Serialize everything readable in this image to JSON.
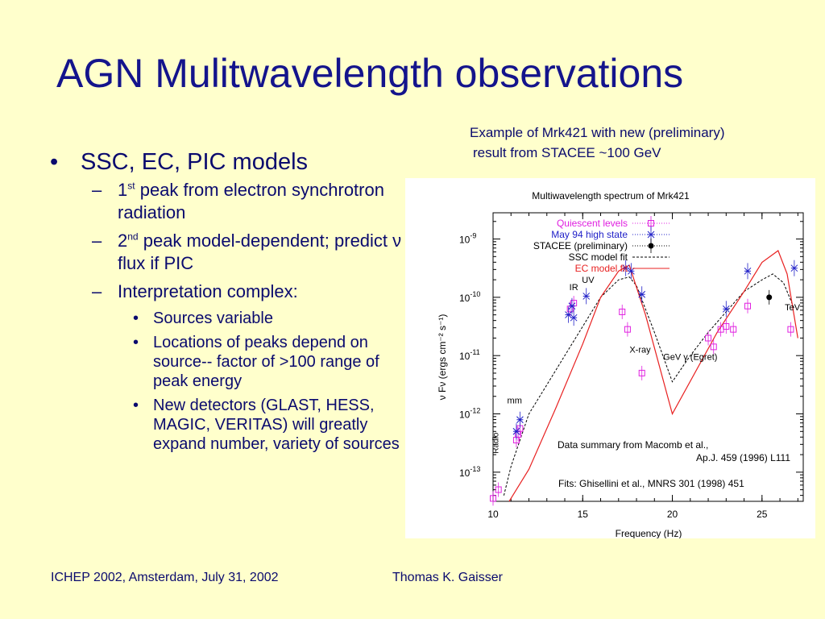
{
  "slide": {
    "title": "AGN Mulitwavelength observations",
    "caption_line1": "Example of Mrk421 with new (preliminary)",
    "caption_line2": "result from STACEE ~100 GeV",
    "bullets": {
      "b1": "SSC, EC, PIC models",
      "s1_pre": "1",
      "s1_sup": "st",
      "s1_post": " peak from electron synchrotron radiation",
      "s2_pre": "2",
      "s2_sup": "nd",
      "s2_post": " peak model-dependent; predict ν flux if PIC",
      "s3": "Interpretation complex:",
      "t1": "Sources variable",
      "t2": "Locations of peaks depend on source-- factor of >100 range of peak energy",
      "t3": "New detectors (GLAST, HESS, MAGIC, VERITAS) will greatly expand number, variety of sources"
    },
    "footer_left": "ICHEP 2002, Amsterdam, July 31, 2002",
    "footer_right": "Thomas K. Gaisser"
  },
  "chart_data": {
    "type": "scatter",
    "title": "Multiwavelength spectrum of Mrk421",
    "xlabel": "Frequency (Hz)",
    "ylabel": "ν Fν (ergs cm⁻² s⁻¹)",
    "x_scale": "log10 frequency",
    "y_scale": "log",
    "xlim": [
      10,
      27.3
    ],
    "ylim_log10": [
      -13.5,
      -8.55
    ],
    "x_ticks": [
      "10",
      "15",
      "20",
      "25"
    ],
    "x_tick_values": [
      10,
      15,
      20,
      25
    ],
    "y_ticks": [
      {
        "base": "10",
        "exp": "-9",
        "value": -9
      },
      {
        "base": "10",
        "exp": "-10",
        "value": -10
      },
      {
        "base": "10",
        "exp": "-11",
        "value": -11
      },
      {
        "base": "10",
        "exp": "-12",
        "value": -12
      },
      {
        "base": "10",
        "exp": "-13",
        "value": -13
      }
    ],
    "legend_position": "top-left",
    "colors": {
      "quiescent": "#e020e0",
      "high_state": "#2020c8",
      "stacee": "#000000",
      "ssc": "#000000",
      "ec": "#e82020"
    },
    "series": [
      {
        "name": "Quiescent levels",
        "marker": "square",
        "color": "#e020e0",
        "points": [
          [
            10.0,
            -13.45
          ],
          [
            10.3,
            -13.3
          ],
          [
            11.3,
            -12.45
          ],
          [
            11.4,
            -12.35
          ],
          [
            11.5,
            -12.25
          ],
          [
            14.3,
            -10.2
          ],
          [
            14.5,
            -10.1
          ],
          [
            17.2,
            -10.25
          ],
          [
            17.5,
            -10.55
          ],
          [
            18.3,
            -11.3
          ],
          [
            22.0,
            -10.7
          ],
          [
            22.3,
            -10.85
          ],
          [
            22.7,
            -10.55
          ],
          [
            23.0,
            -10.5
          ],
          [
            23.4,
            -10.55
          ],
          [
            24.2,
            -10.15
          ],
          [
            26.6,
            -10.55
          ]
        ]
      },
      {
        "name": "May 94 high state",
        "marker": "asterisk",
        "color": "#2020c8",
        "points": [
          [
            11.5,
            -12.1
          ],
          [
            11.3,
            -12.3
          ],
          [
            14.2,
            -10.3
          ],
          [
            14.4,
            -10.15
          ],
          [
            14.5,
            -10.35
          ],
          [
            15.2,
            -9.98
          ],
          [
            17.4,
            -9.5
          ],
          [
            17.7,
            -9.55
          ],
          [
            18.3,
            -9.95
          ],
          [
            23.0,
            -10.2
          ],
          [
            24.2,
            -9.55
          ],
          [
            26.8,
            -9.5
          ]
        ]
      },
      {
        "name": "STACEE (preliminary)",
        "marker": "dot",
        "color": "#000000",
        "points": [
          [
            25.4,
            -10.0
          ]
        ]
      },
      {
        "name": "SSC model fit",
        "style": "dashed",
        "color": "#000000",
        "points": [
          [
            10.6,
            -13.4
          ],
          [
            11.0,
            -12.9
          ],
          [
            12.0,
            -12.0
          ],
          [
            13.0,
            -11.5
          ],
          [
            14.0,
            -11.0
          ],
          [
            15.0,
            -10.5
          ],
          [
            16.0,
            -10.0
          ],
          [
            17.0,
            -9.7
          ],
          [
            17.6,
            -9.65
          ],
          [
            18.0,
            -9.8
          ],
          [
            19.0,
            -10.6
          ],
          [
            20.0,
            -11.45
          ],
          [
            21.0,
            -11.0
          ],
          [
            22.0,
            -10.6
          ],
          [
            23.0,
            -10.25
          ],
          [
            24.0,
            -9.9
          ],
          [
            25.0,
            -9.7
          ],
          [
            25.6,
            -9.6
          ],
          [
            26.2,
            -9.75
          ],
          [
            26.8,
            -10.2
          ]
        ]
      },
      {
        "name": "EC model fit",
        "style": "solid",
        "color": "#e82020",
        "points": [
          [
            10.9,
            -13.5
          ],
          [
            12.0,
            -12.95
          ],
          [
            13.5,
            -11.9
          ],
          [
            15.0,
            -10.8
          ],
          [
            16.0,
            -10.0
          ],
          [
            17.0,
            -9.55
          ],
          [
            17.6,
            -9.45
          ],
          [
            18.5,
            -10.3
          ],
          [
            20.0,
            -12.0
          ],
          [
            22.5,
            -10.6
          ],
          [
            24.0,
            -9.9
          ],
          [
            25.0,
            -9.4
          ],
          [
            25.9,
            -9.2
          ],
          [
            26.4,
            -9.6
          ],
          [
            27.0,
            -10.7
          ]
        ]
      }
    ],
    "annotations": [
      {
        "text": "IR",
        "x": 14.5,
        "y": -9.88
      },
      {
        "text": "UV",
        "x": 15.3,
        "y": -9.75
      },
      {
        "text": "X-ray",
        "x": 18.2,
        "y": -10.95
      },
      {
        "text": "mm",
        "x": 11.2,
        "y": -11.82
      },
      {
        "text": "Radio",
        "x": 10.3,
        "y": -12.5
      },
      {
        "text": "TeV",
        "x": 26.7,
        "y": -10.22
      },
      {
        "text": "GeV γ  (Egret)",
        "x": 21.0,
        "y": -11.07
      }
    ],
    "notes": [
      "Data summary from Macomb et al.,",
      "Ap.J. 459 (1996) L111",
      "Fits: Ghisellini et al., MNRS 301 (1998) 451"
    ]
  }
}
